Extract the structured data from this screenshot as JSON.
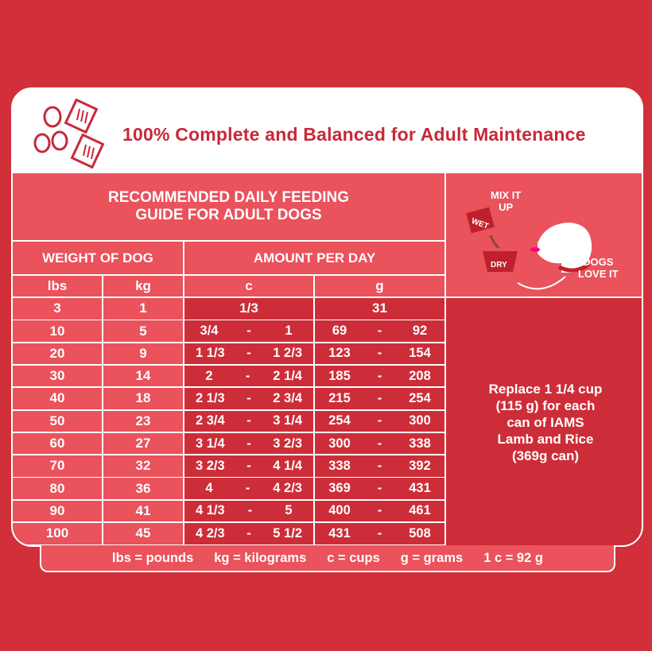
{
  "header": {
    "title": "100% Complete and Balanced for Adult Maintenance",
    "icon": "kibble-and-cup-icon"
  },
  "guide_title": [
    "RECOMMENDED DAILY FEEDING",
    "GUIDE FOR ADULT DOGS"
  ],
  "columns": {
    "weight": "WEIGHT OF DOG",
    "amount": "AMOUNT PER DAY",
    "lbs": "lbs",
    "kg": "kg",
    "c": "c",
    "g": "g"
  },
  "rows": [
    {
      "lbs": "3",
      "kg": "1",
      "c": "1/3",
      "g": "31"
    },
    {
      "lbs": "10",
      "kg": "5",
      "c_min": "3/4",
      "c_max": "1",
      "g_min": "69",
      "g_max": "92"
    },
    {
      "lbs": "20",
      "kg": "9",
      "c_min": "1 1/3",
      "c_max": "1 2/3",
      "g_min": "123",
      "g_max": "154"
    },
    {
      "lbs": "30",
      "kg": "14",
      "c_min": "2",
      "c_max": "2 1/4",
      "g_min": "185",
      "g_max": "208"
    },
    {
      "lbs": "40",
      "kg": "18",
      "c_min": "2 1/3",
      "c_max": "2 3/4",
      "g_min": "215",
      "g_max": "254"
    },
    {
      "lbs": "50",
      "kg": "23",
      "c_min": "2 3/4",
      "c_max": "3 1/4",
      "g_min": "254",
      "g_max": "300"
    },
    {
      "lbs": "60",
      "kg": "27",
      "c_min": "3 1/4",
      "c_max": "3 2/3",
      "g_min": "300",
      "g_max": "338"
    },
    {
      "lbs": "70",
      "kg": "32",
      "c_min": "3 2/3",
      "c_max": "4 1/4",
      "g_min": "338",
      "g_max": "392"
    },
    {
      "lbs": "80",
      "kg": "36",
      "c_min": "4",
      "c_max": "4 2/3",
      "g_min": "369",
      "g_max": "431"
    },
    {
      "lbs": "90",
      "kg": "41",
      "c_min": "4 1/3",
      "c_max": "5",
      "g_min": "400",
      "g_max": "461"
    },
    {
      "lbs": "100",
      "kg": "45",
      "c_min": "4 2/3",
      "c_max": "5 1/2",
      "g_min": "431",
      "g_max": "508"
    }
  ],
  "range_sep": "-",
  "side": {
    "mix": [
      "MIX IT",
      "UP"
    ],
    "wet": "WET",
    "dry": "DRY",
    "love": [
      "DOGS",
      "LOVE IT"
    ]
  },
  "note": [
    "Replace 1 1/4 cup",
    "(115 g) for each",
    "can of IAMS",
    "Lamb and Rice",
    "(369g can)"
  ],
  "legend": [
    "lbs = pounds",
    "kg = kilograms",
    "c = cups",
    "g = grams",
    "1 c = 92 g"
  ],
  "colors": {
    "background": "#d1303a",
    "light": "#ea525c",
    "dark": "#cd2d38",
    "title": "#c8283a"
  }
}
